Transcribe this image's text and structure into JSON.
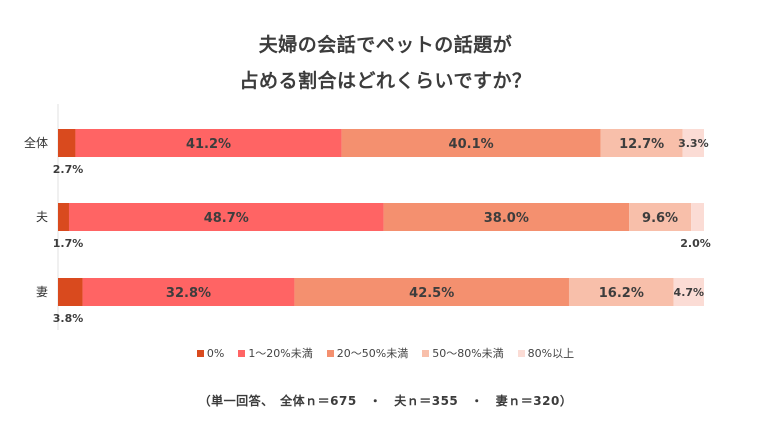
{
  "chart_data": {
    "type": "bar",
    "orientation": "horizontal-stacked-100",
    "title_lines": [
      "夫婦の会話でペットの話題が",
      "占める割合はどれくらいですか？"
    ],
    "categories": [
      "全体",
      "夫",
      "妻"
    ],
    "series": [
      {
        "name": "0%",
        "color": "#d94a1e",
        "values": [
          2.7,
          1.7,
          3.8
        ],
        "labels": [
          "2.7%",
          "1.7%",
          "3.8%"
        ]
      },
      {
        "name": "1～20%未満",
        "color": "#ff6464",
        "values": [
          41.2,
          48.7,
          32.8
        ],
        "labels": [
          "41.2%",
          "48.7%",
          "32.8%"
        ]
      },
      {
        "name": "20～50%未満",
        "color": "#f4906f",
        "values": [
          40.1,
          38.0,
          42.5
        ],
        "labels": [
          "40.1%",
          "38.0%",
          "42.5%"
        ]
      },
      {
        "name": "50～80%未満",
        "color": "#f8bfaa",
        "values": [
          12.7,
          9.6,
          16.2
        ],
        "labels": [
          "12.7%",
          "9.6%",
          "16.2%"
        ]
      },
      {
        "name": "80%以上",
        "color": "#fbdcd5",
        "values": [
          3.3,
          2.0,
          4.7
        ],
        "labels": [
          "3.3%",
          "2.0%",
          "4.7%"
        ]
      }
    ],
    "xlim": [
      0,
      100
    ],
    "legend_position": "bottom",
    "grid": false
  },
  "footnote": "（単一回答、　全体ｎ＝675　・　夫ｎ＝355　・　妻ｎ＝320）"
}
